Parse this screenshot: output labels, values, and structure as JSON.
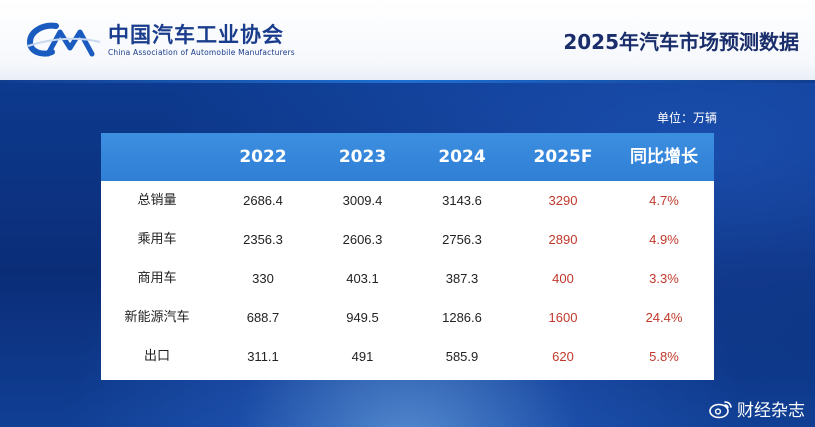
{
  "header": {
    "org_name": "中国汽车工业协会",
    "org_subtitle": "China Association of Automobile Manufacturers",
    "page_title": "2025年汽车市场预测数据",
    "logo_icon": "caam-logo-icon"
  },
  "unit": "单位：万辆",
  "table": {
    "columns": [
      "",
      "2022",
      "2023",
      "2024",
      "2025F",
      "同比增长"
    ],
    "rows": [
      {
        "label": "总销量",
        "v2022": "2686.4",
        "v2023": "3009.4",
        "v2024": "3143.6",
        "v2025f": "3290",
        "growth": "4.7%"
      },
      {
        "label": "乘用车",
        "v2022": "2356.3",
        "v2023": "2606.3",
        "v2024": "2756.3",
        "v2025f": "2890",
        "growth": "4.9%"
      },
      {
        "label": "商用车",
        "v2022": "330",
        "v2023": "403.1",
        "v2024": "387.3",
        "v2025f": "400",
        "growth": "3.3%"
      },
      {
        "label": "新能源汽车",
        "v2022": "688.7",
        "v2023": "949.5",
        "v2024": "1286.6",
        "v2025f": "1600",
        "growth": "24.4%"
      },
      {
        "label": "出口",
        "v2022": "311.1",
        "v2023": "491",
        "v2024": "585.9",
        "v2025f": "620",
        "growth": "5.8%"
      }
    ]
  },
  "watermark": {
    "text": "财经杂志",
    "icon": "weibo-icon"
  },
  "colors": {
    "header_bg": "#ffffff",
    "brand_blue": "#1a3c8c",
    "table_header": "#3d8fe0",
    "forecast_red": "#c0392b",
    "background": "#0b2f7a"
  }
}
